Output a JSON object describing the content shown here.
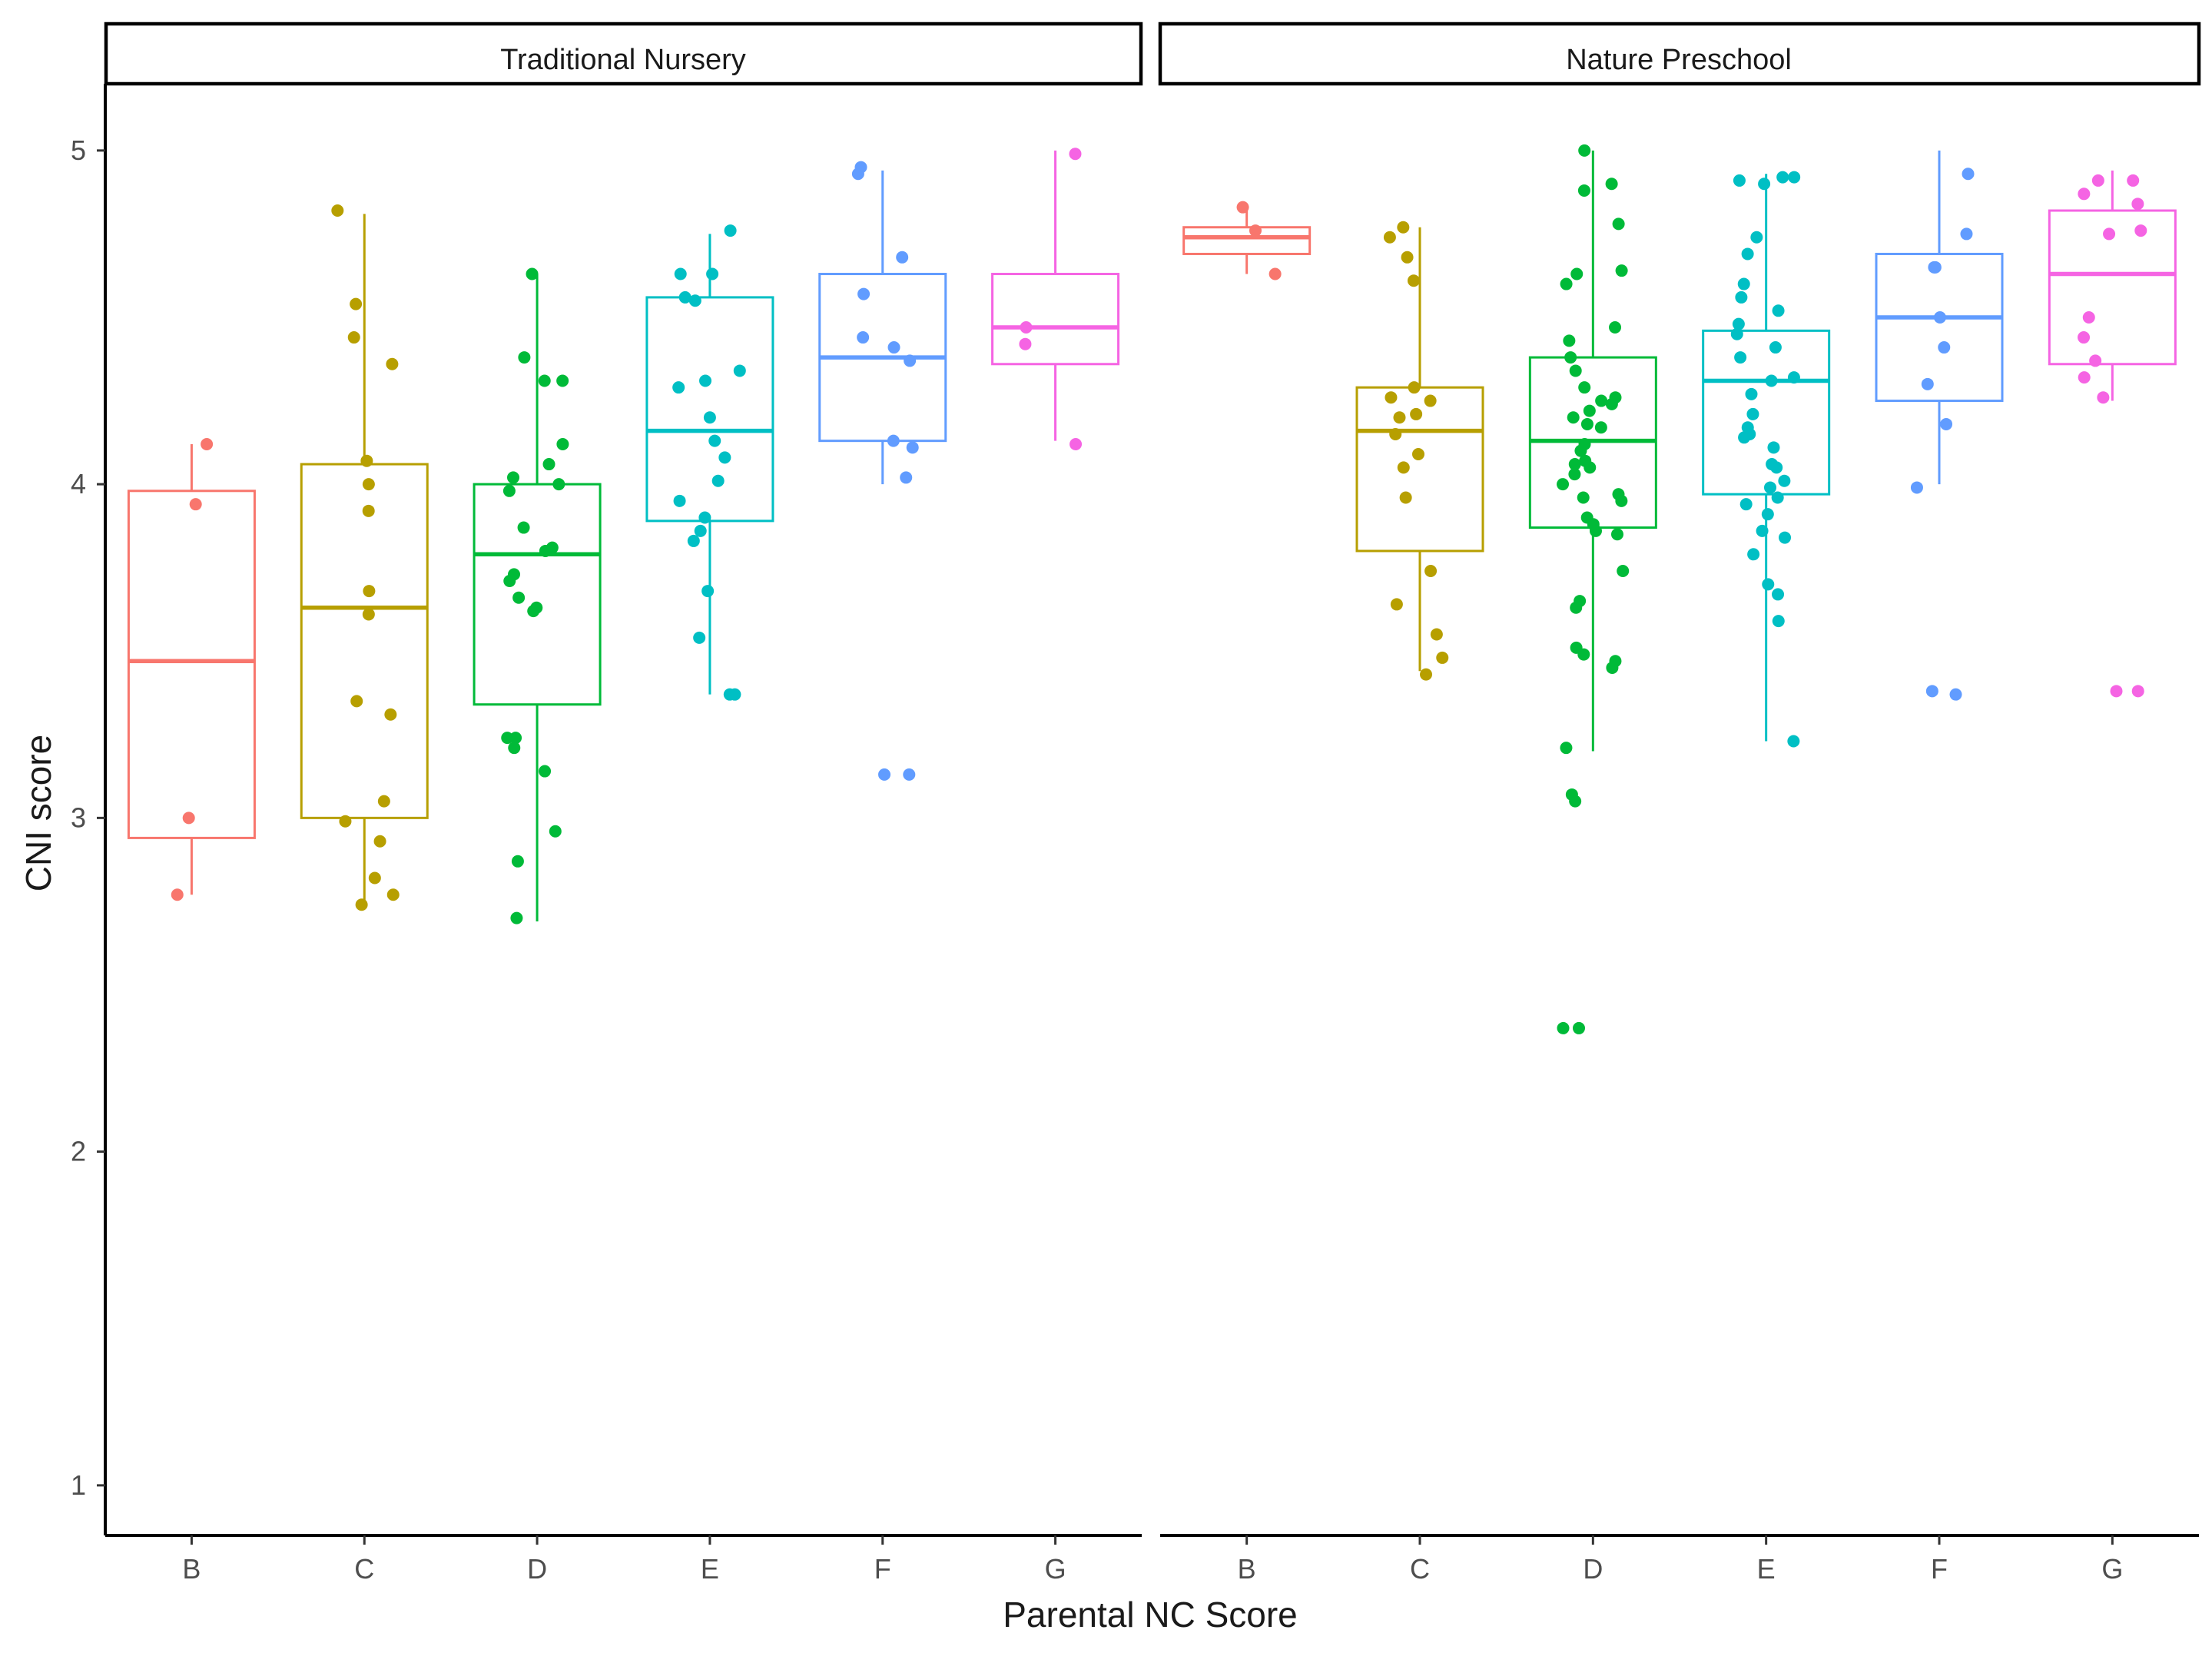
{
  "chart_data": {
    "type": "box",
    "facet_variable": "school_type",
    "xlabel": "Parental NC Score",
    "ylabel": "CNI score",
    "ylim": [
      0.85,
      5.2
    ],
    "yticks": [
      1,
      2,
      3,
      4,
      5
    ],
    "categories": [
      "B",
      "C",
      "D",
      "E",
      "F",
      "G"
    ],
    "colors": {
      "B": "#F8766D",
      "C": "#B79F00",
      "D": "#00BA38",
      "E": "#00BFC4",
      "F": "#619CFF",
      "G": "#F564E3"
    },
    "grid": false,
    "legend": "none",
    "panels": [
      {
        "title": "Traditional Nursery",
        "boxes": [
          {
            "category": "B",
            "whisker_low": 2.77,
            "q1": 2.94,
            "median": 3.47,
            "q3": 3.98,
            "whisker_high": 4.12
          },
          {
            "category": "C",
            "whisker_low": 2.74,
            "q1": 3.0,
            "median": 3.63,
            "q3": 4.06,
            "whisker_high": 4.81
          },
          {
            "category": "D",
            "whisker_low": 2.69,
            "q1": 3.34,
            "median": 3.79,
            "q3": 4.0,
            "whisker_high": 4.63
          },
          {
            "category": "E",
            "whisker_low": 3.37,
            "q1": 3.89,
            "median": 4.16,
            "q3": 4.56,
            "whisker_high": 4.75
          },
          {
            "category": "F",
            "whisker_low": 4.0,
            "q1": 4.13,
            "median": 4.38,
            "q3": 4.63,
            "whisker_high": 4.94
          },
          {
            "category": "G",
            "whisker_low": 4.13,
            "q1": 4.36,
            "median": 4.47,
            "q3": 4.63,
            "whisker_high": 5.0
          }
        ],
        "points": [
          {
            "category": "B",
            "values": [
              4.12,
              3.94,
              3.0,
              2.77
            ]
          },
          {
            "category": "C",
            "values": [
              4.82,
              4.54,
              4.44,
              4.36,
              4.07,
              4.0,
              3.92,
              3.68,
              3.61,
              3.35,
              3.31,
              3.05,
              2.99,
              2.93,
              2.82,
              2.77,
              2.74
            ]
          },
          {
            "category": "D",
            "values": [
              4.63,
              4.38,
              4.31,
              4.31,
              4.12,
              4.06,
              4.02,
              4.0,
              3.98,
              3.87,
              3.81,
              3.8,
              3.73,
              3.71,
              3.66,
              3.63,
              3.62,
              3.24,
              3.24,
              3.21,
              3.14,
              2.96,
              2.87,
              2.7
            ]
          },
          {
            "category": "E",
            "values": [
              4.76,
              4.63,
              4.63,
              4.56,
              4.55,
              4.34,
              4.31,
              4.29,
              4.2,
              4.13,
              4.08,
              4.01,
              3.95,
              3.9,
              3.86,
              3.83,
              3.68,
              3.54,
              3.37,
              3.37
            ]
          },
          {
            "category": "F",
            "values": [
              4.95,
              4.93,
              4.68,
              4.57,
              4.44,
              4.41,
              4.37,
              4.13,
              4.11,
              4.02,
              3.13,
              3.13
            ]
          },
          {
            "category": "G",
            "values": [
              4.99,
              4.47,
              4.42,
              4.12
            ]
          }
        ]
      },
      {
        "title": "Nature Preschool",
        "boxes": [
          {
            "category": "B",
            "whisker_low": 4.63,
            "q1": 4.69,
            "median": 4.74,
            "q3": 4.77,
            "whisker_high": 4.82
          },
          {
            "category": "C",
            "whisker_low": 3.44,
            "q1": 3.8,
            "median": 4.16,
            "q3": 4.29,
            "whisker_high": 4.77
          },
          {
            "category": "D",
            "whisker_low": 3.2,
            "q1": 3.87,
            "median": 4.13,
            "q3": 4.38,
            "whisker_high": 5.0
          },
          {
            "category": "E",
            "whisker_low": 3.23,
            "q1": 3.97,
            "median": 4.31,
            "q3": 4.46,
            "whisker_high": 4.93
          },
          {
            "category": "F",
            "whisker_low": 4.0,
            "q1": 4.25,
            "median": 4.5,
            "q3": 4.69,
            "whisker_high": 5.0
          },
          {
            "category": "G",
            "whisker_low": 4.25,
            "q1": 4.36,
            "median": 4.63,
            "q3": 4.82,
            "whisker_high": 4.94
          }
        ],
        "points": [
          {
            "category": "B",
            "values": [
              4.83,
              4.76,
              4.63
            ]
          },
          {
            "category": "C",
            "values": [
              4.77,
              4.74,
              4.68,
              4.61,
              4.29,
              4.26,
              4.25,
              4.21,
              4.2,
              4.15,
              4.09,
              4.05,
              3.96,
              3.74,
              3.64,
              3.55,
              3.48,
              3.43
            ]
          },
          {
            "category": "D",
            "values": [
              5.0,
              4.9,
              4.88,
              4.78,
              4.64,
              4.63,
              4.6,
              4.47,
              4.43,
              4.38,
              4.34,
              4.29,
              4.26,
              4.25,
              4.24,
              4.22,
              4.2,
              4.18,
              4.17,
              4.12,
              4.1,
              4.07,
              4.06,
              4.05,
              4.03,
              4.0,
              3.97,
              3.96,
              3.95,
              3.9,
              3.88,
              3.86,
              3.85,
              3.74,
              3.65,
              3.63,
              3.51,
              3.49,
              3.47,
              3.45,
              3.21,
              3.07,
              3.05,
              2.37,
              2.37
            ]
          },
          {
            "category": "E",
            "values": [
              4.92,
              4.92,
              4.91,
              4.9,
              4.74,
              4.69,
              4.6,
              4.56,
              4.52,
              4.48,
              4.45,
              4.41,
              4.38,
              4.32,
              4.31,
              4.27,
              4.21,
              4.17,
              4.15,
              4.14,
              4.11,
              4.06,
              4.05,
              4.01,
              3.99,
              3.96,
              3.94,
              3.91,
              3.86,
              3.84,
              3.79,
              3.7,
              3.67,
              3.59,
              3.23
            ]
          },
          {
            "category": "F",
            "values": [
              4.93,
              4.75,
              4.65,
              4.65,
              4.5,
              4.41,
              4.3,
              4.18,
              3.99,
              3.38,
              3.37
            ]
          },
          {
            "category": "G",
            "values": [
              4.91,
              4.91,
              4.87,
              4.84,
              4.76,
              4.75,
              4.44,
              4.5,
              4.37,
              4.32,
              4.26,
              3.38,
              3.38
            ]
          }
        ]
      }
    ]
  }
}
